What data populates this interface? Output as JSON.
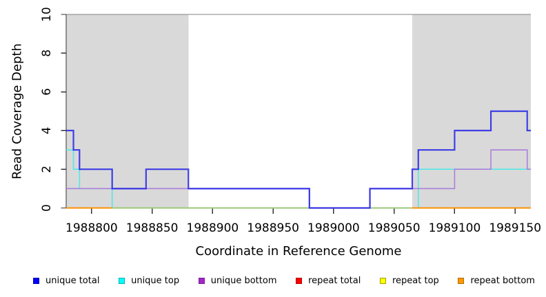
{
  "axes": {
    "x_label": "Coordinate in Reference Genome",
    "y_label": "Read Coverage Depth"
  },
  "chart_data": {
    "type": "line",
    "subtype": "step-coverage",
    "title": "",
    "xlabel": "Coordinate in Reference Genome",
    "ylabel": "Read Coverage Depth",
    "xlim": [
      1988779,
      1989163
    ],
    "ylim": [
      0,
      10
    ],
    "x_ticks": [
      1988800,
      1988850,
      1988900,
      1988950,
      1989000,
      1989050,
      1989100,
      1989150
    ],
    "y_ticks": [
      0,
      2,
      4,
      6,
      8,
      10
    ],
    "grid": false,
    "legend_position": "bottom",
    "colors": {
      "region": "#d9d9d9",
      "box": "#808080",
      "axis": "#333333",
      "text": "#000000"
    },
    "highlight_regions": [
      {
        "x0": 1988779,
        "x1": 1988880
      },
      {
        "x0": 1989065,
        "x1": 1989163
      }
    ],
    "series": [
      {
        "name": "repeat total",
        "color": "#e00000",
        "width": 2,
        "opacity": 1,
        "points": [
          [
            1988779,
            0
          ]
        ]
      },
      {
        "name": "repeat top",
        "color": "#ffff00",
        "width": 2,
        "opacity": 1,
        "points": [
          [
            1988779,
            0
          ]
        ]
      },
      {
        "name": "unique top",
        "color": "#55e6e6",
        "width": 1.6,
        "opacity": 1,
        "points": [
          [
            1988779,
            3
          ],
          [
            1988785,
            2
          ],
          [
            1988790,
            1
          ],
          [
            1988817,
            0
          ],
          [
            1989070,
            2
          ]
        ]
      },
      {
        "name": "repeat bottom",
        "color": "#ff8f00",
        "width": 2,
        "opacity": 1,
        "points": [
          [
            1988779,
            0
          ]
        ]
      },
      {
        "name": "zero overlap baseline",
        "color": "#8fcf8a",
        "width": 1.8,
        "opacity": 1,
        "points": [
          [
            1988817,
            0
          ]
        ],
        "xend": 1989065
      },
      {
        "name": "unique bottom",
        "color": "#ab7fdc",
        "width": 1.6,
        "opacity": 1,
        "points": [
          [
            1988779,
            1
          ],
          [
            1988980,
            0
          ],
          [
            1989030,
            1
          ],
          [
            1989100,
            2
          ],
          [
            1989130,
            3
          ],
          [
            1989160,
            2
          ]
        ]
      },
      {
        "name": "unique total",
        "color": "#2222e8",
        "width": 2.2,
        "opacity": 0.85,
        "points": [
          [
            1988779,
            4
          ],
          [
            1988785,
            3
          ],
          [
            1988790,
            2
          ],
          [
            1988817,
            1
          ],
          [
            1988845,
            2
          ],
          [
            1988880,
            1
          ],
          [
            1988980,
            0
          ],
          [
            1989030,
            1
          ],
          [
            1989065,
            2
          ],
          [
            1989070,
            3
          ],
          [
            1989100,
            4
          ],
          [
            1989130,
            5
          ],
          [
            1989160,
            4
          ]
        ]
      }
    ],
    "legend": [
      {
        "label": "unique total",
        "fill": "#0000ff",
        "border": "#0000b0"
      },
      {
        "label": "unique top",
        "fill": "#00ffff",
        "border": "#00b0b0"
      },
      {
        "label": "unique bottom",
        "fill": "#a228c8",
        "border": "#76199a"
      },
      {
        "label": "repeat total",
        "fill": "#ff0000",
        "border": "#b00000"
      },
      {
        "label": "repeat top",
        "fill": "#ffff00",
        "border": "#a0a000"
      },
      {
        "label": "repeat bottom",
        "fill": "#ff9900",
        "border": "#b06a00"
      }
    ]
  }
}
